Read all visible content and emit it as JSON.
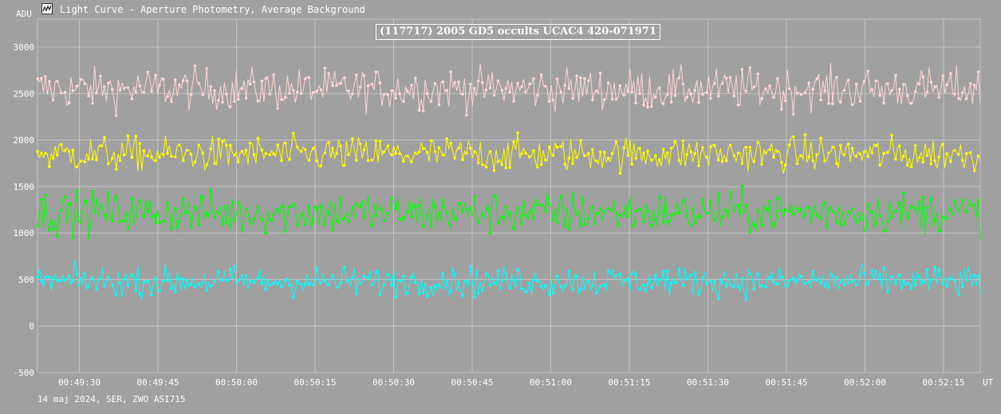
{
  "window": {
    "title": "Light Curve - Aperture Photometry, Average Background",
    "icon": "light-curve-app-icon"
  },
  "footer": {
    "session": "14 maj 2024, SER, ZWO ASI715"
  },
  "colors": {
    "background": "#a0a0a0",
    "grid": "#c4c4c4",
    "text": "#ffffff"
  },
  "chart_data": {
    "type": "line",
    "title": "(117717) 2005 GD5 occults UCAC4 420-071971",
    "ylabel": "ADU",
    "xlabel": "UT",
    "ylim": [
      -500,
      3300
    ],
    "xlim": [
      "00:49:22",
      "00:52:22"
    ],
    "yticks": [
      -500,
      0,
      500,
      1000,
      1500,
      2000,
      2500,
      3000
    ],
    "xticks": [
      "00:49:30",
      "00:49:45",
      "00:50:00",
      "00:50:15",
      "00:50:30",
      "00:50:45",
      "00:51:00",
      "00:51:15",
      "00:51:30",
      "00:51:45",
      "00:52:00",
      "00:52:15"
    ],
    "grid": true,
    "points_per_series": 480,
    "series": [
      {
        "color": "#ffd6d6",
        "mean": 2550,
        "spread": 180
      },
      {
        "color": "#ffff00",
        "mean": 1850,
        "spread": 150
      },
      {
        "color": "#00ff00",
        "mean": 1220,
        "spread": 180
      },
      {
        "color": "#00ffff",
        "mean": 480,
        "spread": 130
      }
    ]
  }
}
